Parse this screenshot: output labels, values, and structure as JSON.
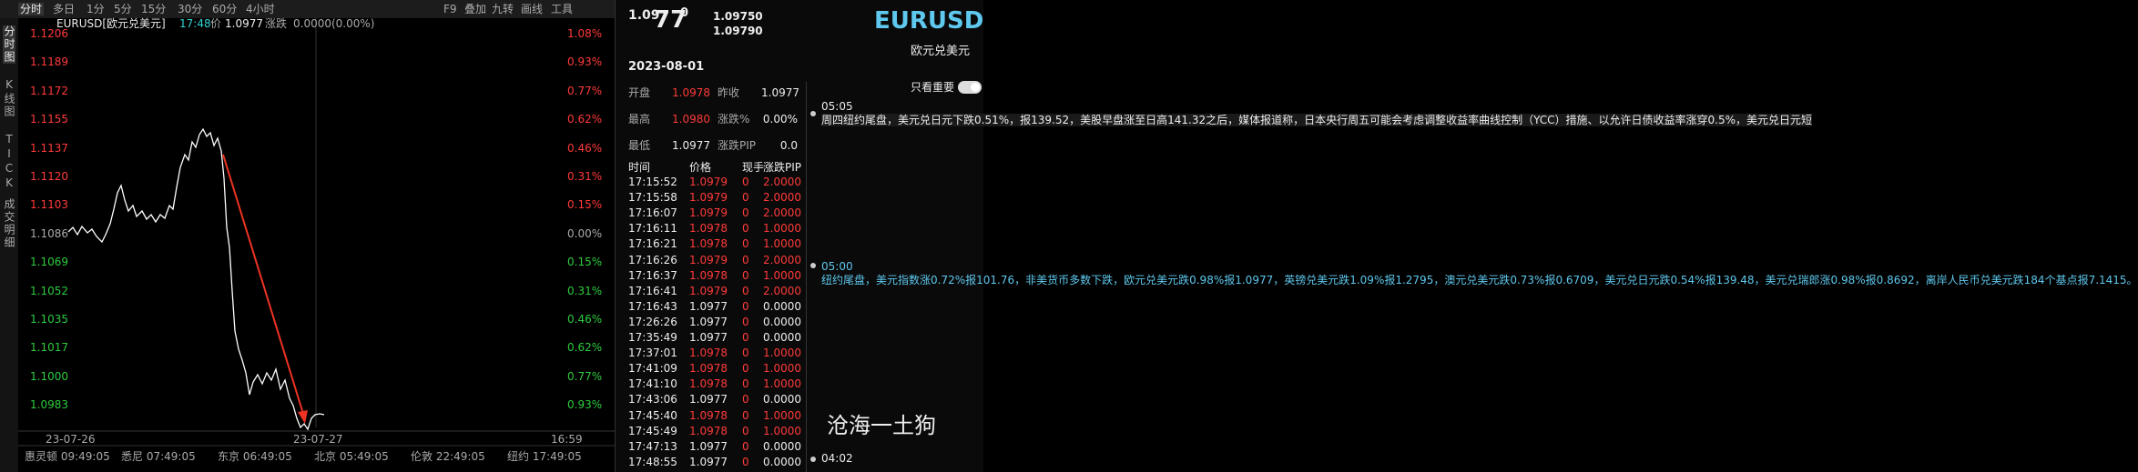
{
  "toolbar": {
    "tabs": [
      "分时",
      "多日",
      "1分",
      "5分",
      "15分",
      "30分",
      "60分",
      "4小时"
    ],
    "tools": [
      "F9",
      "叠加",
      "九转",
      "画线",
      "工具"
    ]
  },
  "sidebar": [
    "分时图",
    "K线图",
    "TICK",
    "成交明细"
  ],
  "chart_header": {
    "symbol": "EURUSD[欧元兑美元]",
    "time": "17:48",
    "price_label": "价",
    "price": "1.0977",
    "change_label": "涨跌",
    "change": "0.0000(0.00%)"
  },
  "y_left": [
    "1.1206",
    "1.1189",
    "1.1172",
    "1.1155",
    "1.1137",
    "1.1120",
    "1.1103",
    "1.1086",
    "1.1069",
    "1.1052",
    "1.1035",
    "1.1017",
    "1.1000",
    "1.0983"
  ],
  "y_right": [
    "1.08%",
    "0.93%",
    "0.77%",
    "0.62%",
    "0.46%",
    "0.31%",
    "0.15%",
    "0.00%",
    "0.15%",
    "0.31%",
    "0.46%",
    "0.62%",
    "0.77%",
    "0.93%"
  ],
  "x_labels": [
    "23-07-26",
    "23-07-27",
    "16:59"
  ],
  "clocks": [
    "惠灵顿 09:49:05",
    "悉尼 07:49:05",
    "东京 06:49:05",
    "北京 05:49:05",
    "伦敦 22:49:05",
    "纽约 17:49:05"
  ],
  "quote": {
    "price_main": "1.09",
    "price_big": "77",
    "price_sup": "0",
    "bid": "1.09750",
    "ask": "1.09790",
    "symbol": "EURUSD",
    "name": "欧元兑美元",
    "date": "2023-08-01",
    "stats": [
      [
        "开盘",
        "1.0978",
        "昨收",
        "1.0977"
      ],
      [
        "最高",
        "1.0980",
        "涨跌%",
        "0.00%"
      ],
      [
        "最低",
        "1.0977",
        "涨跌PIP",
        "0.0"
      ]
    ]
  },
  "ticks": {
    "headers": [
      "时间",
      "价格",
      "现手",
      "涨跌PIP"
    ],
    "rows": [
      [
        "17:15:52",
        "1.0979",
        "0",
        "2.0000"
      ],
      [
        "17:15:58",
        "1.0979",
        "0",
        "2.0000"
      ],
      [
        "17:16:07",
        "1.0979",
        "0",
        "2.0000"
      ],
      [
        "17:16:11",
        "1.0978",
        "0",
        "1.0000"
      ],
      [
        "17:16:21",
        "1.0978",
        "0",
        "1.0000"
      ],
      [
        "17:16:26",
        "1.0979",
        "0",
        "2.0000"
      ],
      [
        "17:16:37",
        "1.0978",
        "0",
        "1.0000"
      ],
      [
        "17:16:41",
        "1.0979",
        "0",
        "2.0000"
      ],
      [
        "17:16:43",
        "1.0977",
        "0",
        "0.0000"
      ],
      [
        "17:26:26",
        "1.0977",
        "0",
        "0.0000"
      ],
      [
        "17:35:49",
        "1.0977",
        "0",
        "0.0000"
      ],
      [
        "17:37:01",
        "1.0978",
        "0",
        "1.0000"
      ],
      [
        "17:41:09",
        "1.0978",
        "0",
        "1.0000"
      ],
      [
        "17:41:10",
        "1.0978",
        "0",
        "1.0000"
      ],
      [
        "17:43:06",
        "1.0977",
        "0",
        "0.0000"
      ],
      [
        "17:45:40",
        "1.0978",
        "0",
        "1.0000"
      ],
      [
        "17:45:49",
        "1.0978",
        "0",
        "1.0000"
      ],
      [
        "17:47:13",
        "1.0977",
        "0",
        "0.0000"
      ],
      [
        "17:48:55",
        "1.0977",
        "0",
        "0.0000"
      ]
    ]
  },
  "news": {
    "filter": "只看重要",
    "items": [
      {
        "time": "05:05",
        "text": "周四纽约尾盘，美元兑日元下跌0.51%，报139.52，美股早盘涨至日高141.32之后，媒体报道称，日本央行周五可能会考虑调整收益率曲线控制（YCC）措施、以允许日债收益率涨穿0.5%，美元兑日元短"
      },
      {
        "time": "05:00",
        "text": "纽约尾盘，美元指数涨0.72%报101.76，非美货币多数下跌，欧元兑美元跌0.98%报1.0977，英镑兑美元跌1.09%报1.2795，澳元兑美元跌0.73%报0.6709，美元兑日元跌0.54%报139.48，美元兑瑞郎涨0.98%报0.8692，离岸人民币兑美元跌184个基点报7.1415。"
      },
      {
        "time": "04:02",
        "text": ""
      }
    ]
  },
  "watermark": "沧海一土狗"
}
